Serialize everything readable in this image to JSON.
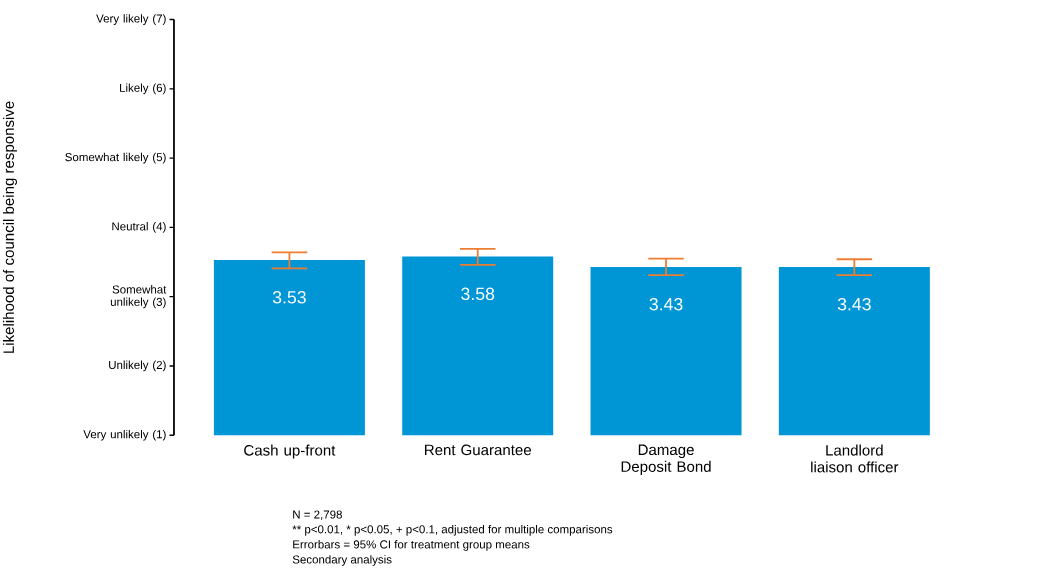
{
  "chart_data": {
    "type": "bar",
    "ylabel": "Likelihood of council being responsive",
    "categories": [
      "Cash up-front",
      "Rent Guarantee",
      "Damage Deposit Bond",
      "Landlord liaison officer"
    ],
    "values": [
      3.53,
      3.58,
      3.43,
      3.43
    ],
    "errors": [
      [
        3.41,
        3.64
      ],
      [
        3.46,
        3.69
      ],
      [
        3.31,
        3.55
      ],
      [
        3.31,
        3.54
      ]
    ],
    "color": "#0096d6",
    "data_labels": true,
    "ylim": [
      1,
      7
    ],
    "yticks": [
      {
        "value": 1,
        "label": "Very unlikely (1)"
      },
      {
        "value": 2,
        "label": "Unlikely (2)"
      },
      {
        "value": 3,
        "label": "Somewhat unlikely (3)"
      },
      {
        "value": 4,
        "label": "Neutral (4)"
      },
      {
        "value": 5,
        "label": "Somewhat likely (5)"
      },
      {
        "value": 6,
        "label": "Likely (6)"
      },
      {
        "value": 7,
        "label": "Very likely (7)"
      }
    ],
    "grid": false,
    "annotations": [
      "N = 2,798",
      "** p<0.01, * p<0.05, + p<0.1, adjusted for multiple comparisons",
      "Errorbars = 95% CI for treatment group means",
      "Secondary analysis"
    ]
  }
}
